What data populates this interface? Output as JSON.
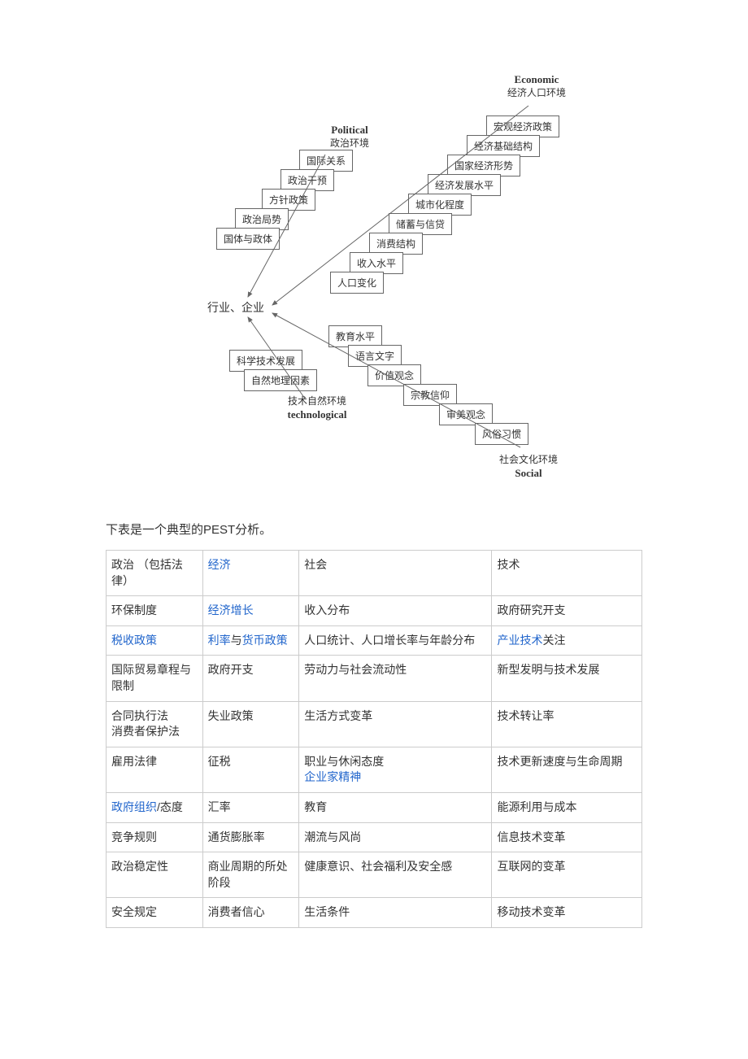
{
  "diagram": {
    "categories": {
      "political": {
        "en": "Political",
        "zh": "政治环境",
        "items": [
          "国际关系",
          "政治干预",
          "方针政策",
          "政治局势",
          "国体与政体"
        ]
      },
      "economic": {
        "en": "Economic",
        "zh": "经济人口环境",
        "items": [
          "宏观经济政策",
          "经济基础结构",
          "国家经济形势",
          "经济发展水平",
          "城市化程度",
          "储蓄与信贷",
          "消费结构",
          "收入水平",
          "人口变化"
        ]
      },
      "technological": {
        "en": "technological",
        "zh": "技术自然环境",
        "items": [
          "科学技术发展",
          "自然地理因素"
        ]
      },
      "social": {
        "en": "Social",
        "zh": "社会文化环境",
        "items": [
          "教育水平",
          "语言文字",
          "价值观念",
          "宗教信仰",
          "审美观念",
          "风俗习惯"
        ]
      }
    },
    "center": "行业、企业",
    "colors": {
      "border": "#666666",
      "text": "#333333",
      "bg": "#ffffff",
      "link": "#2266cc"
    },
    "font_size_box": 12,
    "font_size_label": 12,
    "font_size_center": 14
  },
  "intro": "下表是一个典型的PEST分析。",
  "table": {
    "headers": [
      {
        "segments": [
          {
            "t": "政治 （包括法律）"
          }
        ]
      },
      {
        "segments": [
          {
            "t": "经济",
            "link": true
          }
        ]
      },
      {
        "segments": [
          {
            "t": "社会"
          }
        ]
      },
      {
        "segments": [
          {
            "t": "技术"
          }
        ]
      }
    ],
    "rows": [
      [
        {
          "segments": [
            {
              "t": "环保制度"
            }
          ]
        },
        {
          "segments": [
            {
              "t": "经济增长",
              "link": true
            }
          ]
        },
        {
          "segments": [
            {
              "t": "收入分布"
            }
          ]
        },
        {
          "segments": [
            {
              "t": "政府研究开支"
            }
          ]
        }
      ],
      [
        {
          "segments": [
            {
              "t": "税收政策",
              "link": true
            }
          ]
        },
        {
          "segments": [
            {
              "t": "利率",
              "link": true
            },
            {
              "t": "与"
            },
            {
              "t": "货币政策",
              "link": true
            }
          ]
        },
        {
          "segments": [
            {
              "t": "人口统计、人口增长率与年龄分布"
            }
          ]
        },
        {
          "segments": [
            {
              "t": "产业技术",
              "link": true
            },
            {
              "t": "关注"
            }
          ]
        }
      ],
      [
        {
          "segments": [
            {
              "t": "国际贸易章程与限制"
            }
          ]
        },
        {
          "segments": [
            {
              "t": "政府开支"
            }
          ]
        },
        {
          "segments": [
            {
              "t": "劳动力与社会流动性"
            }
          ]
        },
        {
          "segments": [
            {
              "t": "新型发明与技术发展"
            }
          ]
        }
      ],
      [
        {
          "segments": [
            {
              "t": "合同执行法"
            },
            {
              "br": true
            },
            {
              "t": "消费者保护法"
            }
          ]
        },
        {
          "segments": [
            {
              "t": "失业政策"
            }
          ]
        },
        {
          "segments": [
            {
              "t": "生活方式变革"
            }
          ]
        },
        {
          "segments": [
            {
              "t": "技术转让率"
            }
          ]
        }
      ],
      [
        {
          "segments": [
            {
              "t": "雇用法律"
            }
          ]
        },
        {
          "segments": [
            {
              "t": "征税"
            }
          ]
        },
        {
          "segments": [
            {
              "t": "职业与休闲态度"
            },
            {
              "br": true
            },
            {
              "t": "企业家精神",
              "link": true
            }
          ]
        },
        {
          "segments": [
            {
              "t": "技术更新速度与生命周期"
            }
          ]
        }
      ],
      [
        {
          "segments": [
            {
              "t": "政府组织",
              "link": true
            },
            {
              "t": "/态度"
            }
          ]
        },
        {
          "segments": [
            {
              "t": "汇率"
            }
          ]
        },
        {
          "segments": [
            {
              "t": "教育"
            }
          ]
        },
        {
          "segments": [
            {
              "t": "能源利用与成本"
            }
          ]
        }
      ],
      [
        {
          "segments": [
            {
              "t": "竞争规则"
            }
          ]
        },
        {
          "segments": [
            {
              "t": "通货膨胀率"
            }
          ]
        },
        {
          "segments": [
            {
              "t": "潮流与风尚"
            }
          ]
        },
        {
          "segments": [
            {
              "t": "信息技术变革"
            }
          ]
        }
      ],
      [
        {
          "segments": [
            {
              "t": "政治稳定性"
            }
          ]
        },
        {
          "segments": [
            {
              "t": "商业周期的所处阶段"
            }
          ]
        },
        {
          "segments": [
            {
              "t": "健康意识、社会福利及安全感"
            }
          ]
        },
        {
          "segments": [
            {
              "t": "互联网的变革"
            }
          ]
        }
      ],
      [
        {
          "segments": [
            {
              "t": "安全规定"
            }
          ]
        },
        {
          "segments": [
            {
              "t": "消费者信心"
            }
          ]
        },
        {
          "segments": [
            {
              "t": "生活条件"
            }
          ]
        },
        {
          "segments": [
            {
              "t": "移动技术变革"
            }
          ]
        }
      ]
    ],
    "col_widths": [
      "18%",
      "18%",
      "36%",
      "28%"
    ]
  }
}
